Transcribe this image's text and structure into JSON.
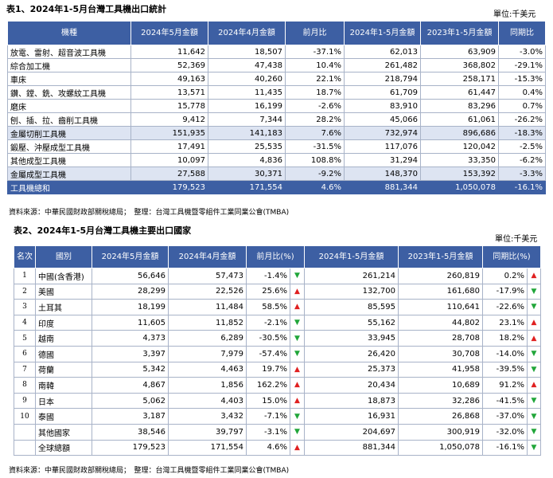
{
  "table1": {
    "title": "表1、2024年1-5月台灣工具機出口統計",
    "unit": "單位:千美元",
    "headers": [
      "機種",
      "2024年5月金額",
      "2024年4月金額",
      "前月比",
      "2024年1-5月金額",
      "2023年1-5月金額",
      "同期比"
    ],
    "rows": [
      {
        "name": "放電、雷射、超音波工具機",
        "may": "11,642",
        "apr": "18,507",
        "mom": "-37.1%",
        "ytd24": "62,013",
        "ytd23": "63,909",
        "yoy": "-3.0%"
      },
      {
        "name": "綜合加工機",
        "may": "52,369",
        "apr": "47,438",
        "mom": "10.4%",
        "ytd24": "261,482",
        "ytd23": "368,802",
        "yoy": "-29.1%"
      },
      {
        "name": "車床",
        "may": "49,163",
        "apr": "40,260",
        "mom": "22.1%",
        "ytd24": "218,794",
        "ytd23": "258,171",
        "yoy": "-15.3%"
      },
      {
        "name": "鑽、鏜、銑、攻螺紋工具機",
        "may": "13,571",
        "apr": "11,435",
        "mom": "18.7%",
        "ytd24": "61,709",
        "ytd23": "61,447",
        "yoy": "0.4%"
      },
      {
        "name": "磨床",
        "may": "15,778",
        "apr": "16,199",
        "mom": "-2.6%",
        "ytd24": "83,910",
        "ytd23": "83,296",
        "yoy": "0.7%"
      },
      {
        "name": "刨、插、拉、齒削工具機",
        "may": "9,412",
        "apr": "7,344",
        "mom": "28.2%",
        "ytd24": "45,066",
        "ytd23": "61,061",
        "yoy": "-26.2%"
      },
      {
        "name": "金屬切削工具機",
        "may": "151,935",
        "apr": "141,183",
        "mom": "7.6%",
        "ytd24": "732,974",
        "ytd23": "896,686",
        "yoy": "-18.3%",
        "style": "hl"
      },
      {
        "name": "鍛壓、沖壓成型工具機",
        "may": "17,491",
        "apr": "25,535",
        "mom": "-31.5%",
        "ytd24": "117,076",
        "ytd23": "120,042",
        "yoy": "-2.5%"
      },
      {
        "name": "其他成型工具機",
        "may": "10,097",
        "apr": "4,836",
        "mom": "108.8%",
        "ytd24": "31,294",
        "ytd23": "33,350",
        "yoy": "-6.2%"
      },
      {
        "name": "金屬成型工具機",
        "may": "27,588",
        "apr": "30,371",
        "mom": "-9.2%",
        "ytd24": "148,370",
        "ytd23": "153,392",
        "yoy": "-3.3%",
        "style": "hl"
      },
      {
        "name": "工具機總和",
        "may": "179,523",
        "apr": "171,554",
        "mom": "4.6%",
        "ytd24": "881,344",
        "ytd23": "1,050,078",
        "yoy": "-16.1%",
        "style": "total"
      }
    ],
    "source": "資料來源：中華民國財政部關稅總局；　整理：台灣工具機暨零組件工業同業公會(TMBA)"
  },
  "table2": {
    "title": "表2、2024年1-5月台灣工具機主要出口國家",
    "unit": "單位:千美元",
    "headers": [
      "名次",
      "國別",
      "2024年5月金額",
      "2024年4月金額",
      "前月比(%)",
      "2024年1-5月金額",
      "2023年1-5月金額",
      "同期比(%)"
    ],
    "rows": [
      {
        "rank": "1",
        "country": "中國(含香港)",
        "may": "56,646",
        "apr": "57,473",
        "mom": "-1.4%",
        "mom_dir": "down",
        "ytd24": "261,214",
        "ytd23": "260,819",
        "yoy": "0.2%",
        "yoy_dir": "up"
      },
      {
        "rank": "2",
        "country": "美國",
        "may": "28,299",
        "apr": "22,526",
        "mom": "25.6%",
        "mom_dir": "up",
        "ytd24": "132,700",
        "ytd23": "161,680",
        "yoy": "-17.9%",
        "yoy_dir": "down"
      },
      {
        "rank": "3",
        "country": "土耳其",
        "may": "18,199",
        "apr": "11,484",
        "mom": "58.5%",
        "mom_dir": "up",
        "ytd24": "85,595",
        "ytd23": "110,641",
        "yoy": "-22.6%",
        "yoy_dir": "down"
      },
      {
        "rank": "4",
        "country": "印度",
        "may": "11,605",
        "apr": "11,852",
        "mom": "-2.1%",
        "mom_dir": "down",
        "ytd24": "55,162",
        "ytd23": "44,802",
        "yoy": "23.1%",
        "yoy_dir": "up"
      },
      {
        "rank": "5",
        "country": "越南",
        "may": "4,373",
        "apr": "6,289",
        "mom": "-30.5%",
        "mom_dir": "down",
        "ytd24": "33,945",
        "ytd23": "28,708",
        "yoy": "18.2%",
        "yoy_dir": "up"
      },
      {
        "rank": "6",
        "country": "德國",
        "may": "3,397",
        "apr": "7,979",
        "mom": "-57.4%",
        "mom_dir": "down",
        "ytd24": "26,420",
        "ytd23": "30,708",
        "yoy": "-14.0%",
        "yoy_dir": "down"
      },
      {
        "rank": "7",
        "country": "荷蘭",
        "may": "5,342",
        "apr": "4,463",
        "mom": "19.7%",
        "mom_dir": "up",
        "ytd24": "25,373",
        "ytd23": "41,958",
        "yoy": "-39.5%",
        "yoy_dir": "down"
      },
      {
        "rank": "8",
        "country": "南韓",
        "may": "4,867",
        "apr": "1,856",
        "mom": "162.2%",
        "mom_dir": "up",
        "ytd24": "20,434",
        "ytd23": "10,689",
        "yoy": "91.2%",
        "yoy_dir": "up"
      },
      {
        "rank": "9",
        "country": "日本",
        "may": "5,062",
        "apr": "4,403",
        "mom": "15.0%",
        "mom_dir": "up",
        "ytd24": "18,873",
        "ytd23": "32,286",
        "yoy": "-41.5%",
        "yoy_dir": "down"
      },
      {
        "rank": "10",
        "country": "泰國",
        "may": "3,187",
        "apr": "3,432",
        "mom": "-7.1%",
        "mom_dir": "down",
        "ytd24": "16,931",
        "ytd23": "26,868",
        "yoy": "-37.0%",
        "yoy_dir": "down"
      },
      {
        "rank": "",
        "country": "其他國家",
        "may": "38,546",
        "apr": "39,797",
        "mom": "-3.1%",
        "mom_dir": "down",
        "ytd24": "204,697",
        "ytd23": "300,919",
        "yoy": "-32.0%",
        "yoy_dir": "down"
      },
      {
        "rank": "",
        "country": "全球總額",
        "may": "179,523",
        "apr": "171,554",
        "mom": "4.6%",
        "mom_dir": "up",
        "ytd24": "881,344",
        "ytd23": "1,050,078",
        "yoy": "-16.1%",
        "yoy_dir": "down"
      }
    ],
    "source": "資料來源：中華民國財政部關稅總局；　整理：台灣工具機暨零組件工業同業公會(TMBA)"
  },
  "colors": {
    "header": "#3d5fa3",
    "highlight": "#dde4f2",
    "up": "#e02020",
    "down": "#21a63a"
  }
}
